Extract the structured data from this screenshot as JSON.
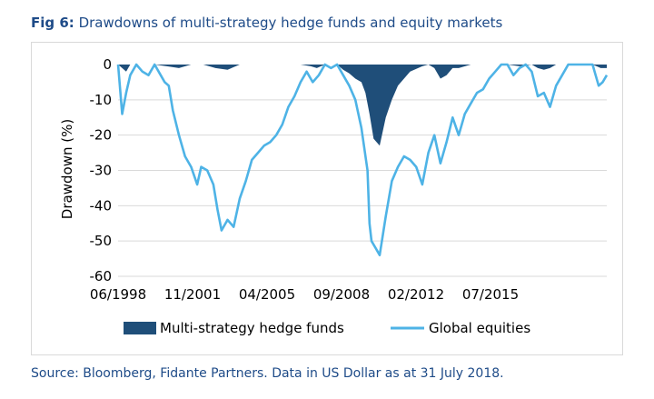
{
  "figure": {
    "label": "Fig 6:",
    "title": "Drawdowns of multi-strategy hedge funds and equity markets",
    "source": "Source:  Bloomberg, Fidante Partners. Data in US Dollar as at 31 July 2018."
  },
  "chart_data": {
    "type": "area",
    "ylabel": "Drawdown (%)",
    "xlabel": "",
    "ylim": [
      -60,
      0
    ],
    "yticks": [
      0,
      -10,
      -20,
      -30,
      -40,
      -50,
      -60
    ],
    "xlim": [
      "1998-06",
      "2018-07"
    ],
    "xtick_labels": [
      "06/1998",
      "11/2001",
      "04/2005",
      "09/2008",
      "02/2012",
      "07/2015"
    ],
    "grid": "horizontal",
    "legend_position": "bottom",
    "colors": {
      "hedge": "#1f4e79",
      "equity": "#4eb3e6",
      "grid": "#d9d9d9",
      "axis_text": "#000000"
    },
    "series": [
      {
        "name": "Multi-strategy hedge funds",
        "type": "area",
        "x": [
          "1998-06",
          "1998-08",
          "1998-10",
          "1998-12",
          "1999-06",
          "1999-12",
          "2000-06",
          "2000-12",
          "2001-06",
          "2001-12",
          "2002-06",
          "2002-12",
          "2003-06",
          "2003-12",
          "2004-06",
          "2004-12",
          "2005-06",
          "2005-12",
          "2006-05",
          "2006-08",
          "2006-12",
          "2007-06",
          "2007-09",
          "2007-12",
          "2008-03",
          "2008-06",
          "2008-08",
          "2008-10",
          "2008-12",
          "2009-03",
          "2009-06",
          "2009-09",
          "2009-12",
          "2010-06",
          "2010-12",
          "2011-03",
          "2011-06",
          "2011-09",
          "2011-12",
          "2012-03",
          "2012-06",
          "2012-12",
          "2013-06",
          "2013-12",
          "2014-06",
          "2014-12",
          "2015-06",
          "2015-09",
          "2015-12",
          "2016-03",
          "2016-06",
          "2016-12",
          "2017-06",
          "2017-12",
          "2018-02",
          "2018-04",
          "2018-07"
        ],
        "values": [
          0,
          -1,
          -2,
          0,
          0,
          0,
          -0.5,
          -1,
          0,
          0,
          -1,
          -1.5,
          0,
          0,
          0,
          0,
          0,
          0,
          -0.5,
          -1,
          0,
          0,
          -1.5,
          -2.5,
          -4,
          -5,
          -8,
          -14,
          -21,
          -23,
          -15,
          -10,
          -6,
          -2,
          -0.5,
          0,
          -1,
          -4,
          -3,
          -1,
          -1,
          0,
          0,
          0,
          0,
          -0.5,
          0,
          -1,
          -1.5,
          -1,
          0,
          0,
          0,
          0,
          -0.5,
          -1,
          -1
        ]
      },
      {
        "name": "Global equities",
        "type": "line",
        "x": [
          "1998-06",
          "1998-08",
          "1998-10",
          "1998-12",
          "1999-03",
          "1999-06",
          "1999-09",
          "1999-12",
          "2000-03",
          "2000-05",
          "2000-07",
          "2000-09",
          "2000-12",
          "2001-03",
          "2001-06",
          "2001-09",
          "2001-11",
          "2002-02",
          "2002-05",
          "2002-07",
          "2002-09",
          "2002-12",
          "2003-03",
          "2003-06",
          "2003-09",
          "2003-12",
          "2004-03",
          "2004-06",
          "2004-09",
          "2004-12",
          "2005-03",
          "2005-06",
          "2005-09",
          "2005-12",
          "2006-03",
          "2006-06",
          "2006-09",
          "2006-12",
          "2007-03",
          "2007-06",
          "2007-09",
          "2007-12",
          "2008-03",
          "2008-06",
          "2008-09",
          "2008-10",
          "2008-11",
          "2009-01",
          "2009-03",
          "2009-06",
          "2009-09",
          "2009-12",
          "2010-03",
          "2010-06",
          "2010-09",
          "2010-12",
          "2011-03",
          "2011-06",
          "2011-09",
          "2011-12",
          "2012-03",
          "2012-06",
          "2012-09",
          "2012-12",
          "2013-03",
          "2013-06",
          "2013-09",
          "2013-12",
          "2014-03",
          "2014-06",
          "2014-09",
          "2014-12",
          "2015-03",
          "2015-06",
          "2015-09",
          "2015-12",
          "2016-03",
          "2016-06",
          "2016-09",
          "2016-12",
          "2017-03",
          "2017-06",
          "2017-09",
          "2017-12",
          "2018-01",
          "2018-03",
          "2018-05",
          "2018-07"
        ],
        "values": [
          0,
          -14,
          -8,
          -3,
          0,
          -2,
          -3,
          0,
          -3,
          -5,
          -6,
          -13,
          -20,
          -26,
          -29,
          -34,
          -29,
          -30,
          -34,
          -41,
          -47,
          -44,
          -46,
          -38,
          -33,
          -27,
          -25,
          -23,
          -22,
          -20,
          -17,
          -12,
          -9,
          -5,
          -2,
          -5,
          -3,
          0,
          -1,
          0,
          -3,
          -6,
          -10,
          -18,
          -30,
          -45,
          -50,
          -52,
          -54,
          -43,
          -33,
          -29,
          -26,
          -27,
          -29,
          -34,
          -25,
          -20,
          -28,
          -22,
          -15,
          -20,
          -14,
          -11,
          -8,
          -7,
          -4,
          -2,
          0,
          0,
          -3,
          -1,
          0,
          -2,
          -9,
          -8,
          -12,
          -6,
          -3,
          0,
          0,
          0,
          0,
          0,
          -2,
          -6,
          -5,
          -3
        ]
      }
    ]
  }
}
